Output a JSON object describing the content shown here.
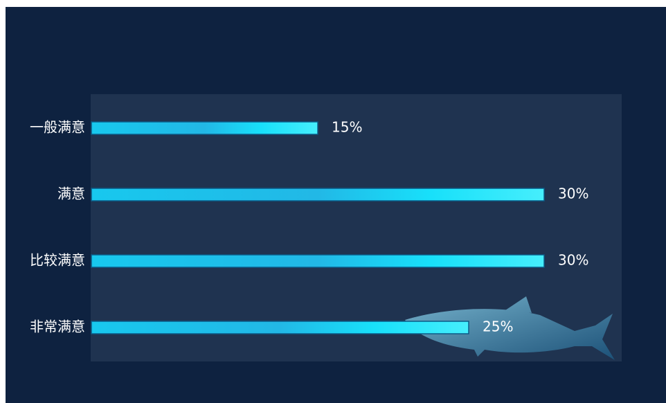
{
  "chart_data": {
    "type": "bar",
    "orientation": "horizontal",
    "categories": [
      "一般满意",
      "满意",
      "比较满意",
      "非常满意"
    ],
    "values": [
      15,
      30,
      30,
      25
    ],
    "value_labels": [
      "15%",
      "30%",
      "30%",
      "25%"
    ],
    "color": "#1fd6f5"
  }
}
